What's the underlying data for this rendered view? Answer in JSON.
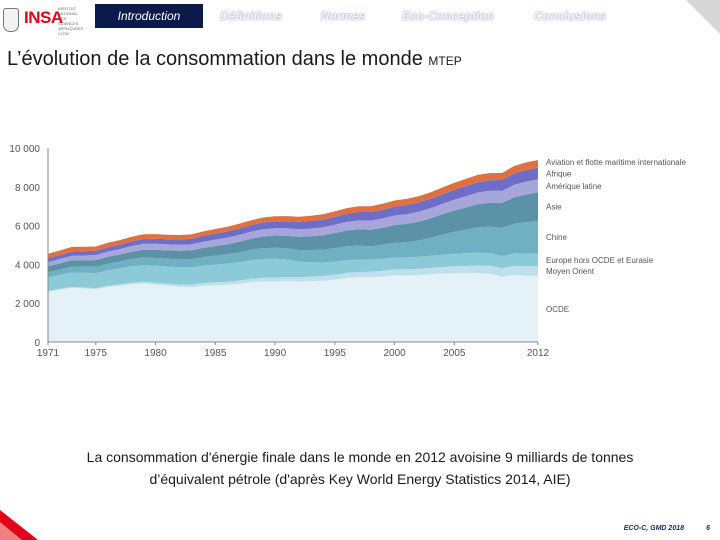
{
  "header": {
    "logo_text": "INSA",
    "logo_subtext": "Institut national des sciences appliquées Lyon",
    "nav": [
      "Introduction",
      "Définitions",
      "Normes",
      "Eco-Conception",
      "Conclusions"
    ],
    "active_nav": "Introduction"
  },
  "title": {
    "main": "L’évolution de la consommation dans le monde",
    "unit": "MTEP"
  },
  "chart_data": {
    "type": "area",
    "stacked": true,
    "title": "L’évolution de la consommation dans le monde",
    "ylabel": "MTEP",
    "ylim": [
      0,
      10000
    ],
    "xlim": [
      1971,
      2012
    ],
    "yticks": [
      0,
      2000,
      4000,
      6000,
      8000,
      10000
    ],
    "ytick_labels": [
      "0",
      "2 000",
      "4 000",
      "6 000",
      "8 000",
      "10 000"
    ],
    "xticks": [
      1971,
      1975,
      1980,
      1985,
      1990,
      1995,
      2000,
      2005,
      2012
    ],
    "x": [
      1971,
      1972,
      1973,
      1974,
      1975,
      1976,
      1977,
      1978,
      1979,
      1980,
      1981,
      1982,
      1983,
      1984,
      1985,
      1986,
      1987,
      1988,
      1989,
      1990,
      1991,
      1992,
      1993,
      1994,
      1995,
      1996,
      1997,
      1998,
      1999,
      2000,
      2001,
      2002,
      2003,
      2004,
      2005,
      2006,
      2007,
      2008,
      2009,
      2010,
      2011,
      2012
    ],
    "series": [
      {
        "name": "OCDE",
        "color": "#e4f1f6",
        "values": [
          2600,
          2700,
          2800,
          2760,
          2720,
          2840,
          2900,
          2980,
          3020,
          2960,
          2900,
          2840,
          2830,
          2900,
          2920,
          2950,
          3000,
          3080,
          3120,
          3120,
          3140,
          3120,
          3140,
          3160,
          3220,
          3300,
          3340,
          3340,
          3380,
          3440,
          3430,
          3450,
          3490,
          3520,
          3540,
          3540,
          3550,
          3510,
          3370,
          3460,
          3420,
          3400
        ]
      },
      {
        "name": "Moyen Orient",
        "color": "#bfe0ea",
        "values": [
          30,
          40,
          40,
          50,
          50,
          60,
          70,
          80,
          90,
          100,
          110,
          120,
          130,
          140,
          150,
          160,
          170,
          180,
          190,
          200,
          210,
          220,
          230,
          240,
          250,
          260,
          270,
          280,
          290,
          300,
          310,
          320,
          330,
          340,
          360,
          380,
          400,
          420,
          440,
          460,
          480,
          500
        ]
      },
      {
        "name": "Europe hors OCDE et Eurasie",
        "color": "#8ccad8",
        "values": [
          700,
          720,
          750,
          760,
          780,
          800,
          820,
          840,
          860,
          870,
          880,
          890,
          890,
          900,
          920,
          930,
          950,
          960,
          970,
          980,
          900,
          800,
          740,
          700,
          670,
          660,
          640,
          620,
          620,
          620,
          620,
          620,
          630,
          640,
          650,
          660,
          660,
          660,
          620,
          650,
          660,
          660
        ]
      },
      {
        "name": "Chine",
        "color": "#6fb1c2",
        "values": [
          270,
          280,
          300,
          310,
          330,
          340,
          360,
          380,
          390,
          400,
          400,
          410,
          420,
          440,
          470,
          490,
          510,
          540,
          560,
          560,
          580,
          600,
          630,
          660,
          700,
          720,
          720,
          700,
          720,
          760,
          790,
          840,
          920,
          1030,
          1130,
          1220,
          1310,
          1360,
          1450,
          1530,
          1620,
          1690
        ]
      },
      {
        "name": "Asie",
        "color": "#5b92a6",
        "values": [
          300,
          310,
          320,
          330,
          340,
          350,
          360,
          380,
          400,
          420,
          430,
          440,
          450,
          470,
          490,
          510,
          540,
          570,
          600,
          630,
          650,
          680,
          710,
          740,
          780,
          810,
          840,
          850,
          880,
          910,
          940,
          970,
          1000,
          1050,
          1100,
          1140,
          1190,
          1230,
          1290,
          1360,
          1420,
          1460
        ]
      },
      {
        "name": "Amérique latine",
        "color": "#a6a6dc",
        "values": [
          220,
          230,
          240,
          250,
          260,
          270,
          280,
          290,
          300,
          310,
          310,
          310,
          310,
          320,
          330,
          340,
          350,
          360,
          370,
          370,
          380,
          390,
          400,
          410,
          420,
          440,
          460,
          470,
          480,
          490,
          500,
          510,
          520,
          540,
          560,
          580,
          600,
          620,
          620,
          650,
          670,
          680
        ]
      },
      {
        "name": "Afrique",
        "color": "#6e6ec6",
        "values": [
          200,
          205,
          210,
          215,
          220,
          225,
          230,
          240,
          250,
          260,
          270,
          280,
          290,
          300,
          310,
          320,
          330,
          340,
          350,
          360,
          370,
          380,
          390,
          400,
          410,
          420,
          430,
          440,
          450,
          460,
          470,
          480,
          490,
          500,
          510,
          520,
          530,
          540,
          560,
          580,
          590,
          600
        ]
      },
      {
        "name": "Aviation et flotte maritime internationale",
        "color": "#e07040",
        "values": [
          230,
          235,
          240,
          230,
          225,
          230,
          235,
          240,
          245,
          240,
          230,
          225,
          225,
          230,
          235,
          240,
          245,
          250,
          255,
          260,
          260,
          265,
          270,
          275,
          280,
          290,
          300,
          300,
          305,
          315,
          315,
          320,
          330,
          345,
          360,
          370,
          380,
          370,
          360,
          380,
          390,
          390
        ]
      }
    ],
    "legend_position": "right"
  },
  "caption": {
    "line1": "La consommation d'énergie finale dans le monde en 2012 avoisine 9 milliards de tonnes",
    "line2": "d’équivalent pétrole (d'après Key World Energy Statistics 2014, AIE)"
  },
  "footer": {
    "text": "ECO-C, GMD 2018",
    "page": "6"
  }
}
